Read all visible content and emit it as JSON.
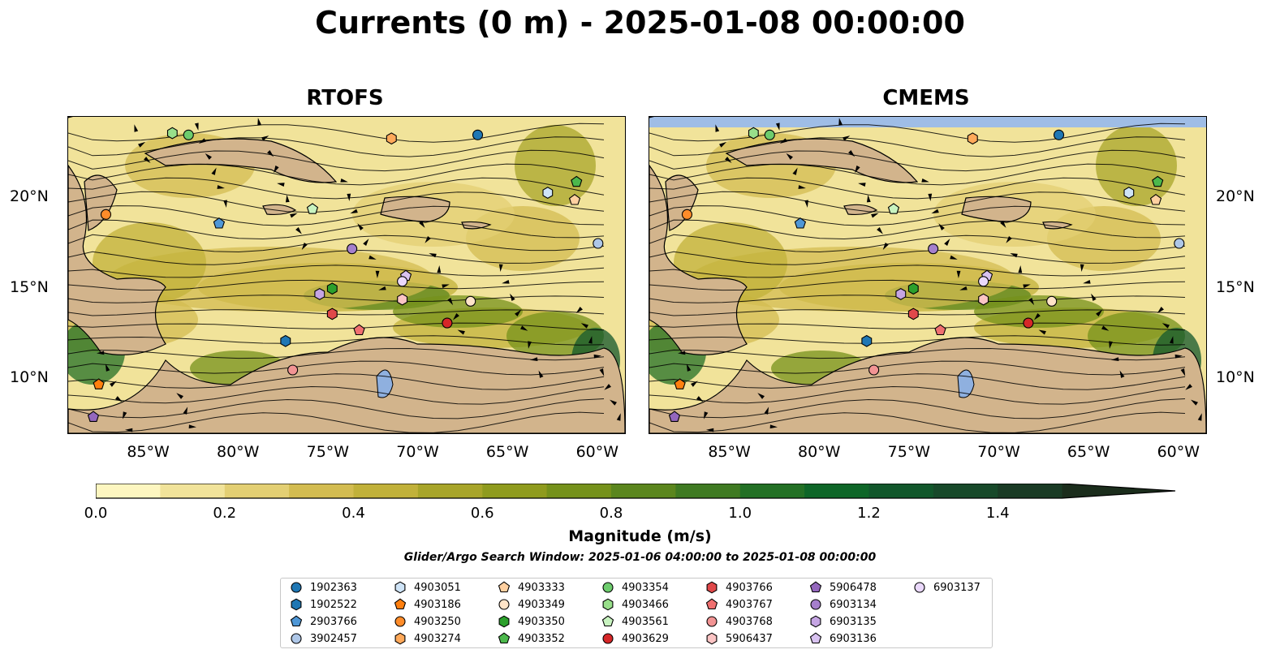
{
  "title": "Currents (0 m) - 2025-01-08 00:00:00",
  "panels": [
    {
      "title": "RTOFS"
    },
    {
      "title": "CMEMS"
    }
  ],
  "axes": {
    "x_ticks": [
      "85°W",
      "80°W",
      "75°W",
      "70°W",
      "65°W",
      "60°W"
    ],
    "y_ticks": [
      "20°N",
      "15°N",
      "10°N"
    ]
  },
  "colorbar": {
    "label": "Magnitude (m/s)",
    "ticks": [
      "0.0",
      "0.2",
      "0.4",
      "0.6",
      "0.8",
      "1.0",
      "1.2",
      "1.4"
    ],
    "colors": [
      "#fdf6c0",
      "#f1e39a",
      "#e3cf73",
      "#d3bc51",
      "#c1b13a",
      "#a8a52a",
      "#8f9b1e",
      "#75911b",
      "#5b861e",
      "#3f7a22",
      "#237025",
      "#0e6628",
      "#11572b",
      "#17492a",
      "#1a3b25",
      "#1b2d1c"
    ]
  },
  "search_window": "Glider/Argo Search Window: 2025-01-06 04:00:00 to 2025-01-08 00:00:00",
  "legend": [
    {
      "id": "1902363",
      "color": "#1f77b4",
      "shape": "circle"
    },
    {
      "id": "1902522",
      "color": "#1f77b4",
      "shape": "hexagon"
    },
    {
      "id": "2903766",
      "color": "#4f97d6",
      "shape": "pentagon"
    },
    {
      "id": "3902457",
      "color": "#aec7e8",
      "shape": "circle"
    },
    {
      "id": "4903051",
      "color": "#cfe4f7",
      "shape": "hexagon"
    },
    {
      "id": "4903186",
      "color": "#ff7f0e",
      "shape": "pentagon"
    },
    {
      "id": "4903250",
      "color": "#ff8c2a",
      "shape": "circle"
    },
    {
      "id": "4903274",
      "color": "#ffa95a",
      "shape": "hexagon"
    },
    {
      "id": "4903333",
      "color": "#ffd0a0",
      "shape": "pentagon"
    },
    {
      "id": "4903349",
      "color": "#ffe4c8",
      "shape": "circle"
    },
    {
      "id": "4903350",
      "color": "#2ca02c",
      "shape": "hexagon"
    },
    {
      "id": "4903352",
      "color": "#4cb84c",
      "shape": "pentagon"
    },
    {
      "id": "4903354",
      "color": "#6dcc6d",
      "shape": "circle"
    },
    {
      "id": "4903466",
      "color": "#98df8a",
      "shape": "hexagon"
    },
    {
      "id": "4903561",
      "color": "#c8f3c0",
      "shape": "pentagon"
    },
    {
      "id": "4903629",
      "color": "#d62728",
      "shape": "circle"
    },
    {
      "id": "4903766",
      "color": "#e0484a",
      "shape": "hexagon"
    },
    {
      "id": "4903767",
      "color": "#f07070",
      "shape": "pentagon"
    },
    {
      "id": "4903768",
      "color": "#f29494",
      "shape": "circle"
    },
    {
      "id": "5906437",
      "color": "#fbc4c4",
      "shape": "hexagon"
    },
    {
      "id": "5906478",
      "color": "#9467bd",
      "shape": "pentagon"
    },
    {
      "id": "6903134",
      "color": "#a57fcc",
      "shape": "circle"
    },
    {
      "id": "6903135",
      "color": "#c5a5e3",
      "shape": "hexagon"
    },
    {
      "id": "6903136",
      "color": "#d8c2f0",
      "shape": "pentagon"
    },
    {
      "id": "6903137",
      "color": "#ead8fb",
      "shape": "circle"
    }
  ],
  "markers": [
    {
      "id": "1902363",
      "lon": -66.7,
      "lat": 23.5
    },
    {
      "id": "1902522",
      "lon": -77.4,
      "lat": 12.1
    },
    {
      "id": "2903766",
      "lon": -81.1,
      "lat": 18.6
    },
    {
      "id": "3902457",
      "lon": -60.0,
      "lat": 17.5
    },
    {
      "id": "4903051",
      "lon": -62.8,
      "lat": 20.3
    },
    {
      "id": "4903186",
      "lon": -87.8,
      "lat": 9.7
    },
    {
      "id": "4903250",
      "lon": -87.4,
      "lat": 19.1
    },
    {
      "id": "4903274",
      "lon": -71.5,
      "lat": 23.3
    },
    {
      "id": "4903333",
      "lon": -61.3,
      "lat": 19.9
    },
    {
      "id": "4903349",
      "lon": -67.1,
      "lat": 14.3
    },
    {
      "id": "4903350",
      "lon": -74.8,
      "lat": 15.0
    },
    {
      "id": "4903352",
      "lon": -61.2,
      "lat": 20.9
    },
    {
      "id": "4903354",
      "lon": -82.8,
      "lat": 23.5
    },
    {
      "id": "4903466",
      "lon": -83.7,
      "lat": 23.6
    },
    {
      "id": "4903561",
      "lon": -75.9,
      "lat": 19.4
    },
    {
      "id": "4903629",
      "lon": -68.4,
      "lat": 13.1
    },
    {
      "id": "4903766",
      "lon": -74.8,
      "lat": 13.6
    },
    {
      "id": "4903767",
      "lon": -73.3,
      "lat": 12.7
    },
    {
      "id": "4903768",
      "lon": -77.0,
      "lat": 10.5
    },
    {
      "id": "5906437",
      "lon": -70.9,
      "lat": 14.4
    },
    {
      "id": "5906478",
      "lon": -88.1,
      "lat": 7.9
    },
    {
      "id": "6903134",
      "lon": -73.7,
      "lat": 17.2
    },
    {
      "id": "6903135",
      "lon": -75.5,
      "lat": 14.7
    },
    {
      "id": "6903136",
      "lon": -70.7,
      "lat": 15.7
    },
    {
      "id": "6903137",
      "lon": -70.9,
      "lat": 15.4
    }
  ],
  "extent": {
    "lon_min": -89.5,
    "lon_max": -58.5,
    "lat_min": 7.0,
    "lat_max": 24.5
  }
}
